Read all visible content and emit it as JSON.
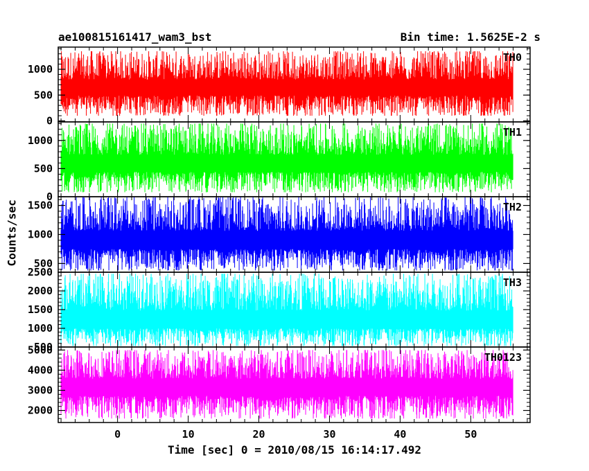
{
  "header": {
    "title": "ae100815161417_wam3_bst",
    "bin_time": "Bin time: 1.5625E-2 s"
  },
  "chart_data": {
    "type": "line",
    "xlabel": "Time [sec] 0 = 2010/08/15 16:14:17.492",
    "ylabel": "Counts/sec",
    "xlim": [
      -8.4,
      58.4
    ],
    "x_ticks": [
      0,
      10,
      20,
      30,
      40,
      50
    ],
    "x_tick_labels": [
      "0",
      "10",
      "20",
      "30",
      "40",
      "50"
    ],
    "data_x_range": [
      -8,
      56
    ],
    "panels": [
      {
        "name": "TH0",
        "color": "#ff0000",
        "ylim": [
          -20,
          1430
        ],
        "y_ticks": [
          0,
          500,
          1000
        ],
        "y_tick_labels": [
          "0",
          "500",
          "1000"
        ],
        "approx_mean": 620,
        "approx_low": 100,
        "approx_high": 1350
      },
      {
        "name": "TH1",
        "color": "#00ff00",
        "ylim": [
          0,
          1330
        ],
        "y_ticks": [
          0,
          500,
          1000
        ],
        "y_tick_labels": [
          "0",
          "500",
          "1000"
        ],
        "approx_mean": 560,
        "approx_low": 80,
        "approx_high": 1300
      },
      {
        "name": "TH2",
        "color": "#0000ff",
        "ylim": [
          350,
          1650
        ],
        "y_ticks": [
          500,
          1000,
          1500
        ],
        "y_tick_labels": [
          "500",
          "1000",
          "1500"
        ],
        "approx_mean": 870,
        "approx_low": 380,
        "approx_high": 1640
      },
      {
        "name": "TH3",
        "color": "#00ffff",
        "ylim": [
          500,
          2500
        ],
        "y_ticks": [
          500,
          1000,
          1500,
          2000,
          2500
        ],
        "y_tick_labels": [
          "500",
          "1000",
          "1500",
          "2000",
          "2500"
        ],
        "approx_mean": 1150,
        "approx_low": 530,
        "approx_high": 2460
      },
      {
        "name": "TH0123",
        "color": "#ff00ff",
        "ylim": [
          1400,
          5150
        ],
        "y_ticks": [
          2000,
          3000,
          4000,
          5000
        ],
        "y_tick_labels": [
          "2000",
          "3000",
          "4000",
          "5000"
        ],
        "approx_mean": 3100,
        "approx_low": 1600,
        "approx_high": 5000
      }
    ]
  }
}
